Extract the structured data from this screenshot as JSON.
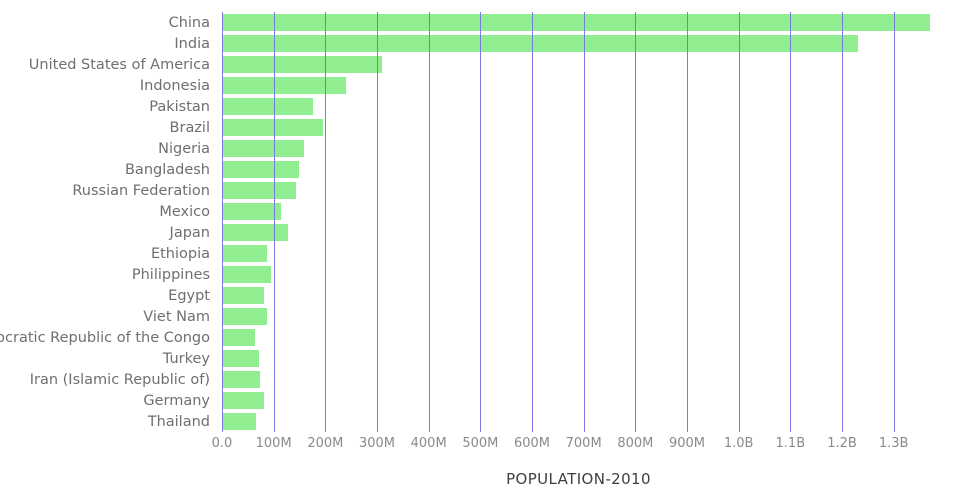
{
  "chart_data": {
    "type": "bar",
    "orientation": "horizontal",
    "xlabel": "POPULATION-2010",
    "ylabel": "",
    "legend": "none",
    "grid": "vertical",
    "categories": [
      "China",
      "India",
      "United States of America",
      "Indonesia",
      "Pakistan",
      "Brazil",
      "Nigeria",
      "Bangladesh",
      "Russian Federation",
      "Mexico",
      "Japan",
      "Ethiopia",
      "Philippines",
      "Egypt",
      "Viet Nam",
      "Democratic Republic of the Congo",
      "Turkey",
      "Iran (Islamic Republic of)",
      "Germany",
      "Thailand"
    ],
    "values_millions": [
      1370,
      1230,
      309,
      240,
      176,
      195,
      159,
      149,
      143,
      114,
      128,
      88,
      94,
      82,
      88,
      64,
      72,
      74,
      81,
      66
    ],
    "x_axis": {
      "tick_labels": [
        "0.0",
        "100M",
        "200M",
        "300M",
        "400M",
        "500M",
        "600M",
        "700M",
        "800M",
        "900M",
        "1.0B",
        "1.1B",
        "1.2B",
        "1.3B"
      ],
      "tick_values_millions": [
        0,
        100,
        200,
        300,
        400,
        500,
        600,
        700,
        800,
        900,
        1000,
        1100,
        1200,
        1300
      ],
      "axis_max_millions": 1380
    },
    "colors": {
      "bar": "#90ee90",
      "gridline": "#7b7bdf",
      "label_text": "#6f6f6f",
      "tick_text": "#8a8a8a",
      "title_text": "#3f3f3f"
    }
  }
}
